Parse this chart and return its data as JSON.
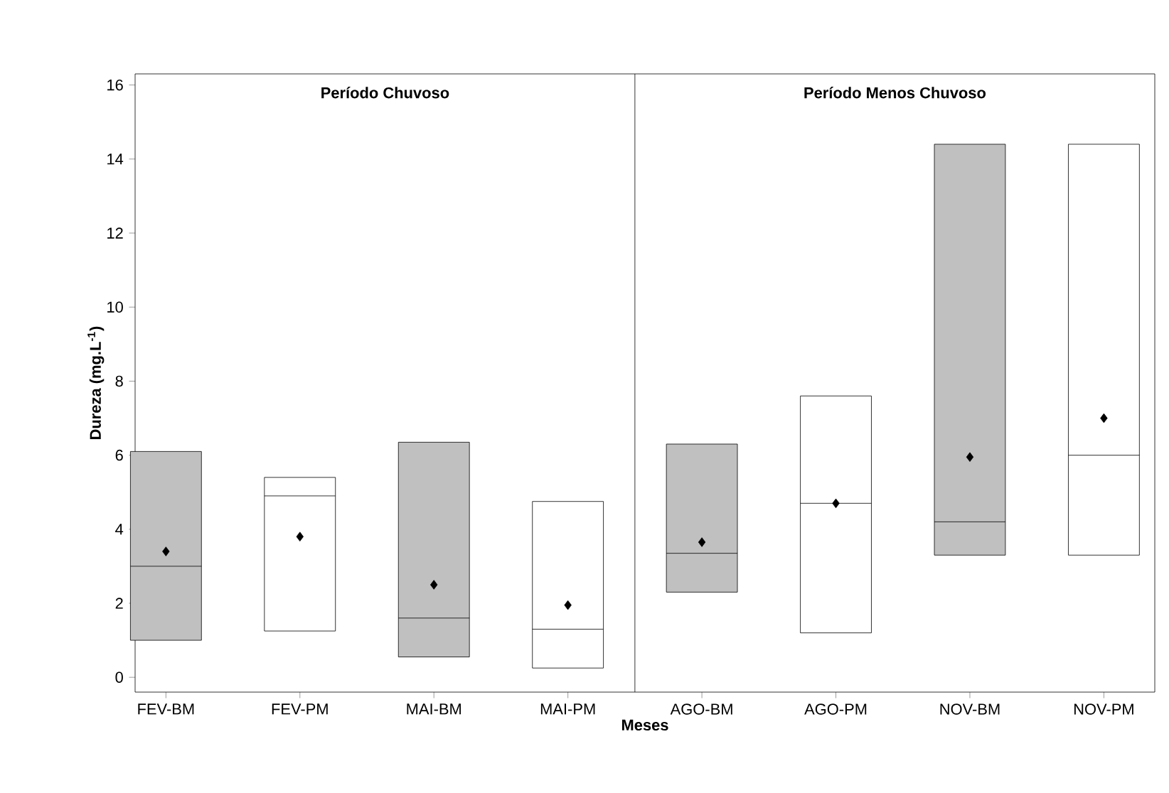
{
  "chart_data": {
    "type": "box",
    "xlabel": "Meses",
    "ylabel": "Dureza (mg.L$^{-1}$)",
    "categories": [
      "FEV-BM",
      "FEV-PM",
      "MAI-BM",
      "MAI-PM",
      "AGO-BM",
      "AGO-PM",
      "NOV-BM",
      "NOV-PM"
    ],
    "boxes": [
      {
        "low": 1.0,
        "q1": 1.0,
        "median": 3.0,
        "q3": 6.1,
        "high": 6.1,
        "mean": 3.4
      },
      {
        "low": 1.25,
        "q1": 1.25,
        "median": 4.9,
        "q3": 5.4,
        "high": 5.4,
        "mean": 3.8
      },
      {
        "low": 0.55,
        "q1": 0.55,
        "median": 1.6,
        "q3": 6.35,
        "high": 6.35,
        "mean": 2.5
      },
      {
        "low": 0.25,
        "q1": 0.25,
        "median": 1.3,
        "q3": 4.75,
        "high": 4.75,
        "mean": 1.95
      },
      {
        "low": 2.3,
        "q1": 2.3,
        "median": 3.35,
        "q3": 6.3,
        "high": 6.3,
        "mean": 3.65
      },
      {
        "low": 1.2,
        "q1": 1.2,
        "median": 4.7,
        "q3": 7.6,
        "high": 7.6,
        "mean": 4.7
      },
      {
        "low": 3.3,
        "q1": 3.3,
        "median": 4.2,
        "q3": 14.4,
        "high": 14.4,
        "mean": 5.95
      },
      {
        "low": 3.3,
        "q1": 3.3,
        "median": 6.0,
        "q3": 14.4,
        "high": 14.4,
        "mean": 7.0
      }
    ],
    "colors": [
      "#c0c0c0",
      "#ffffff",
      "#c0c0c0",
      "#ffffff",
      "#c0c0c0",
      "#ffffff",
      "#c0c0c0",
      "#ffffff"
    ],
    "marker": "diamond",
    "ylim": [
      -0.4,
      16.3
    ],
    "yticks": [
      0,
      2,
      4,
      6,
      8,
      10,
      12,
      14,
      16
    ],
    "annotations": [
      "Período Chuvoso",
      "Período Menos Chuvoso"
    ]
  }
}
